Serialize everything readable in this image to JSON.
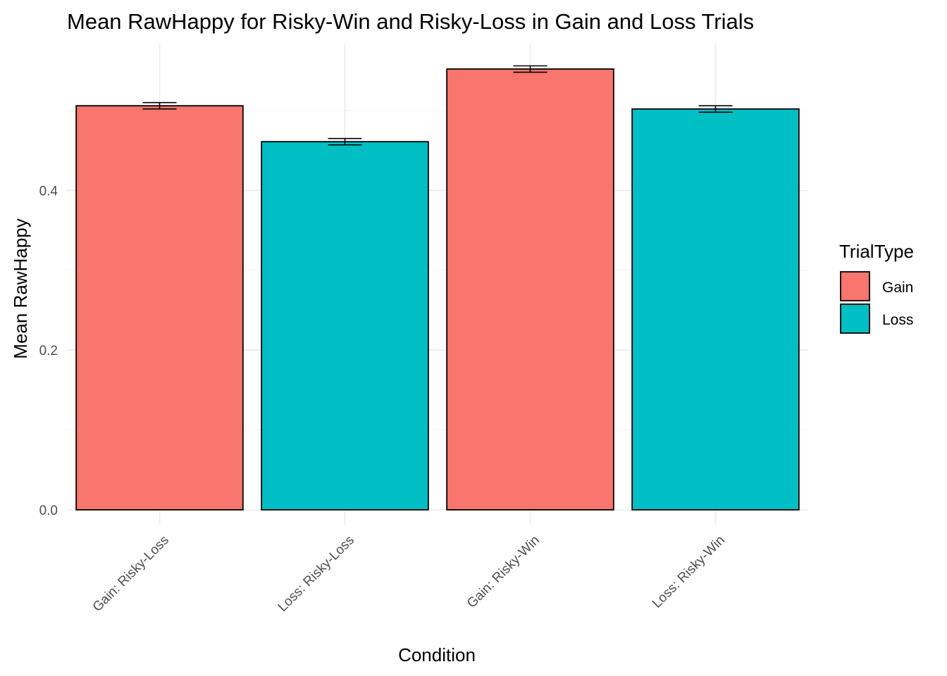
{
  "chart_data": {
    "type": "bar",
    "title": "Mean RawHappy for Risky-Win and Risky-Loss in Gain and Loss Trials",
    "xlabel": "Condition",
    "ylabel": "Mean RawHappy",
    "categories": [
      "Gain: Risky-Loss",
      "Loss: Risky-Loss",
      "Gain: Risky-Win",
      "Loss: Risky-Win"
    ],
    "values": [
      0.506,
      0.461,
      0.552,
      0.502
    ],
    "error": [
      0.004,
      0.004,
      0.004,
      0.004
    ],
    "fill_group": [
      "Gain",
      "Loss",
      "Gain",
      "Loss"
    ],
    "ylim": [
      0,
      0.58
    ],
    "yticks": [
      0.0,
      0.2,
      0.4
    ],
    "ytick_labels": [
      "0.0",
      "0.2",
      "0.4"
    ],
    "grid": true,
    "legend": {
      "title": "TrialType",
      "position": "right",
      "entries": [
        {
          "label": "Gain",
          "color": "#F8766D"
        },
        {
          "label": "Loss",
          "color": "#00BFC4"
        }
      ]
    }
  }
}
